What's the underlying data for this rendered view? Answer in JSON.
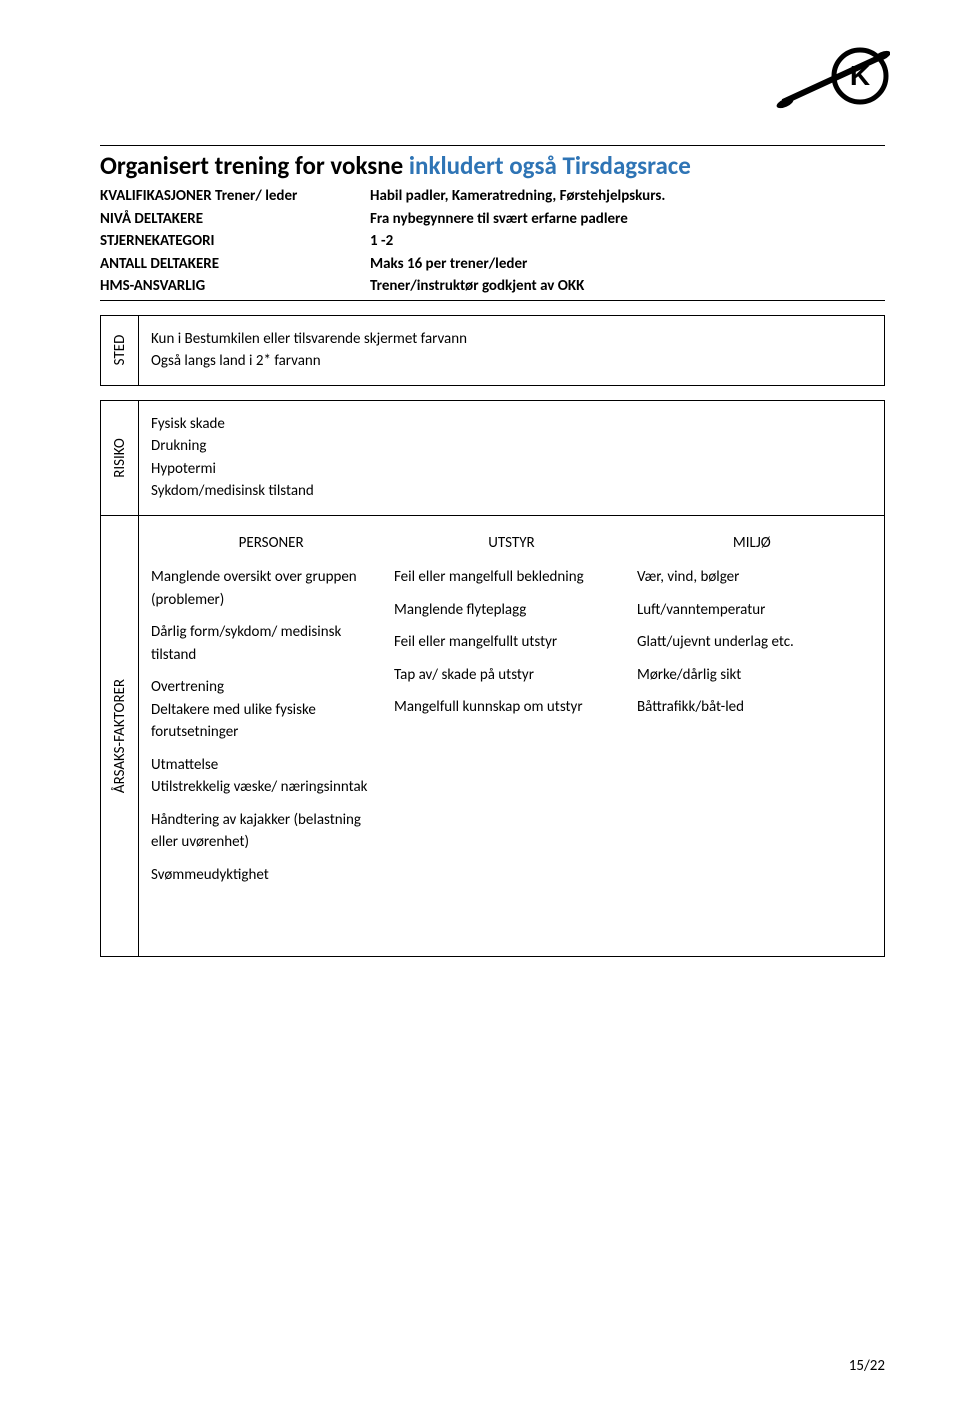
{
  "title_black": "Organisert trening for voksne ",
  "title_blue": "inkludert også Tirsdagsrace",
  "meta": [
    {
      "label": "KVALIFIKASJONER Trener/ leder",
      "value": "Habil padler, Kameratredning, Førstehjelpskurs."
    },
    {
      "label": "NIVÅ DELTAKERE",
      "value": "Fra nybegynnere til svært erfarne padlere"
    },
    {
      "label": "STJERNEKATEGORI",
      "value": "1 -2"
    },
    {
      "label": "ANTALL DELTAKERE",
      "value": "Maks 16  per trener/leder"
    },
    {
      "label": "HMS-ANSVARLIG",
      "value": "Trener/instruktør godkjent av OKK"
    }
  ],
  "sted": {
    "label": "STED",
    "lines": [
      "Kun i Bestumkilen eller tilsvarende skjermet farvann",
      "Også langs land i 2* farvann"
    ]
  },
  "risiko": {
    "label": "RISIKO",
    "lines": [
      "Fysisk skade",
      "Drukning",
      "Hypotermi",
      "Sykdom/medisinsk tilstand"
    ]
  },
  "faktor": {
    "label": "ÅRSAKS-FAKTORER",
    "headers": [
      "PERSONER",
      "UTSTYR",
      "MILJØ"
    ],
    "col1": [
      "Manglende oversikt over gruppen (problemer)",
      "Dårlig form/sykdom/ medisinsk tilstand",
      "Overtrening\nDeltakere med ulike fysiske forutsetninger",
      "Utmattelse\nUtilstrekkelig væske/ næringsinntak",
      "Håndtering av kajakker (belastning eller uvørenhet)",
      "Svømmeudyktighet"
    ],
    "col2": [
      "Feil eller mangelfull bekledning",
      "Manglende flyteplagg",
      "Feil eller mangelfullt utstyr",
      "Tap av/ skade på utstyr",
      "Mangelfull kunnskap om utstyr"
    ],
    "col3": [
      "Vær, vind, bølger",
      "Luft/vanntemperatur",
      "Glatt/ujevnt underlag etc.",
      "Mørke/dårlig sikt",
      "Båttrafikk/båt-led"
    ]
  },
  "pagenum": "15/22",
  "colors": {
    "blue": "#2e74b5",
    "text": "#000000",
    "bg": "#ffffff",
    "border": "#000000"
  }
}
